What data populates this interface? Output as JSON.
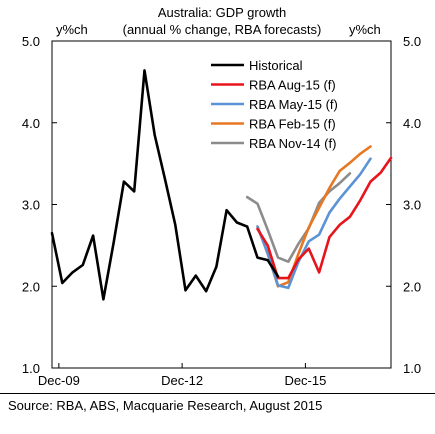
{
  "chart_data": {
    "type": "line",
    "title": "Australia: GDP growth",
    "subtitle": "(annual % change, RBA forecasts)",
    "ylabel_left": "y%ch",
    "ylabel_right": "y%ch",
    "ylim": [
      1.0,
      5.0
    ],
    "yticks": [
      "5.0",
      "4.0",
      "3.0",
      "2.0",
      "1.0"
    ],
    "ytick_values": [
      5.0,
      4.0,
      3.0,
      2.0,
      1.0
    ],
    "xlim": [
      2009.75,
      2018.0
    ],
    "xticks": [
      {
        "label": "Dec-09",
        "value": 2009.917
      },
      {
        "label": "Dec-12",
        "value": 2012.917
      },
      {
        "label": "Dec-15",
        "value": 2015.917
      }
    ],
    "grid": false,
    "legend_position": "top-center",
    "series": [
      {
        "name": "Historical",
        "color": "#000000",
        "x": [
          2009.75,
          2010.0,
          2010.25,
          2010.5,
          2010.75,
          2011.0,
          2011.25,
          2011.5,
          2011.75,
          2012.0,
          2012.25,
          2012.5,
          2012.75,
          2013.0,
          2013.25,
          2013.5,
          2013.75,
          2014.0,
          2014.25,
          2014.5,
          2014.75,
          2015.0,
          2015.25
        ],
        "y": [
          2.65,
          2.04,
          2.17,
          2.26,
          2.62,
          1.84,
          2.53,
          3.28,
          3.16,
          4.64,
          3.85,
          3.31,
          2.75,
          1.95,
          2.13,
          1.94,
          2.24,
          2.93,
          2.78,
          2.73,
          2.35,
          2.32,
          2.12
        ]
      },
      {
        "name": "RBA Aug-15 (f)",
        "color": "#e8141b",
        "x": [
          2014.75,
          2015.0,
          2015.25,
          2015.5,
          2015.75,
          2016.0,
          2016.25,
          2016.5,
          2016.75,
          2017.0,
          2017.25,
          2017.5,
          2017.75,
          2018.0
        ],
        "y": [
          2.7,
          2.5,
          2.1,
          2.1,
          2.33,
          2.46,
          2.17,
          2.6,
          2.75,
          2.85,
          3.05,
          3.28,
          3.39,
          3.57
        ]
      },
      {
        "name": "RBA May-15 (f)",
        "color": "#5b94d6",
        "x": [
          2014.75,
          2015.0,
          2015.25,
          2015.5,
          2015.75,
          2016.0,
          2016.25,
          2016.5,
          2016.75,
          2017.0,
          2017.25,
          2017.5
        ],
        "y": [
          2.73,
          2.4,
          2.01,
          1.98,
          2.3,
          2.55,
          2.63,
          2.9,
          3.07,
          3.22,
          3.37,
          3.56
        ]
      },
      {
        "name": "RBA Feb-15 (f)",
        "color": "#e87722",
        "x": [
          2014.75,
          2015.0,
          2015.25,
          2015.5,
          2015.75,
          2016.0,
          2016.25,
          2016.5,
          2016.75,
          2017.0,
          2017.25,
          2017.5
        ],
        "y": [
          2.73,
          2.4,
          2.0,
          2.05,
          2.4,
          2.72,
          2.96,
          3.2,
          3.41,
          3.51,
          3.62,
          3.71
        ]
      },
      {
        "name": "RBA Nov-14 (f)",
        "color": "#8c8c8c",
        "x": [
          2014.5,
          2014.75,
          2015.0,
          2015.25,
          2015.5,
          2015.75,
          2016.0,
          2016.25,
          2016.5,
          2016.75,
          2017.0
        ],
        "y": [
          3.09,
          3.01,
          2.69,
          2.35,
          2.3,
          2.52,
          2.71,
          3.02,
          3.16,
          3.26,
          3.38
        ]
      }
    ],
    "source": "Source: RBA, ABS, Macquarie Research, August 2015"
  }
}
